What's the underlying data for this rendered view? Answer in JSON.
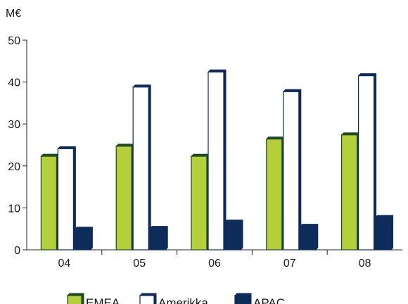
{
  "chart_data": {
    "type": "bar",
    "unit_label": "M€",
    "categories": [
      "04",
      "05",
      "06",
      "07",
      "08"
    ],
    "series": [
      {
        "name": "EMEA",
        "values": [
          22.3,
          24.7,
          22.3,
          26.4,
          27.4
        ],
        "color": "#b5cf3a",
        "stroke": "#1e4a24"
      },
      {
        "name": "Amerikka",
        "values": [
          24.1,
          38.8,
          42.4,
          37.7,
          41.5
        ],
        "color": "#ffffff",
        "stroke": "#0d2c5a"
      },
      {
        "name": "APAC",
        "values": [
          4.9,
          5.1,
          6.6,
          5.6,
          7.7
        ],
        "color": "#0d2c5a",
        "stroke": "#0d2c5a"
      }
    ],
    "ylim": [
      0,
      50
    ],
    "yticks": [
      0,
      10,
      20,
      30,
      40,
      50
    ],
    "legend_position": "bottom",
    "grid": false
  }
}
